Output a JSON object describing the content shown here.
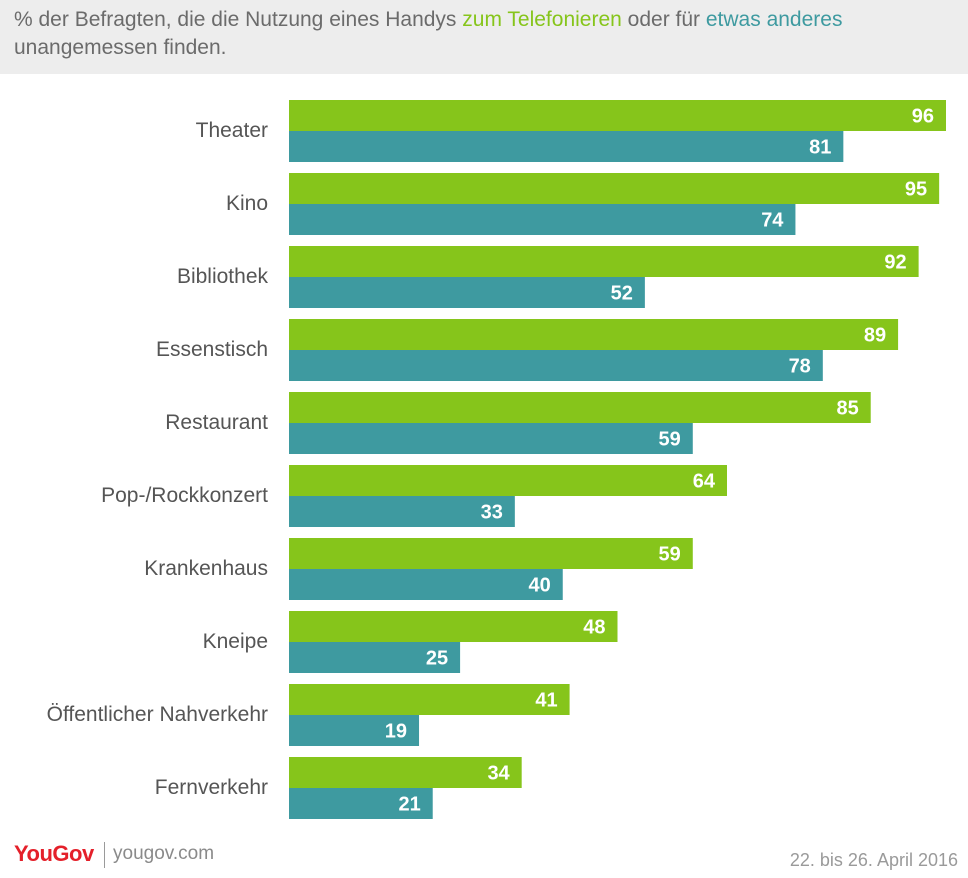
{
  "header": {
    "prefix": "% der Befragten, die die Nutzung eines Handys ",
    "hl1": "zum Telefonieren",
    "mid": " oder für ",
    "hl2": "etwas anderes",
    "suffix": " unangemessen finden."
  },
  "footer": {
    "logo": "YouGov",
    "site": "yougov.com",
    "date": "22. bis 26. April 2016"
  },
  "colors": {
    "telefonieren": "#86c51b",
    "anderes": "#3e9aa0"
  },
  "chart_data": {
    "type": "bar",
    "orientation": "horizontal",
    "categories": [
      "Theater",
      "Kino",
      "Bibliothek",
      "Essenstisch",
      "Restaurant",
      "Pop-/Rockkonzert",
      "Krankenhaus",
      "Kneipe",
      "Öffentlicher Nahverkehr",
      "Fernverkehr"
    ],
    "series": [
      {
        "name": "zum Telefonieren",
        "values": [
          96,
          95,
          92,
          89,
          85,
          64,
          59,
          48,
          41,
          34
        ]
      },
      {
        "name": "etwas anderes",
        "values": [
          81,
          74,
          52,
          78,
          59,
          33,
          40,
          25,
          19,
          21
        ]
      }
    ],
    "xlim": [
      0,
      96
    ],
    "data_labels": true,
    "grid": false,
    "legend": "in title"
  }
}
